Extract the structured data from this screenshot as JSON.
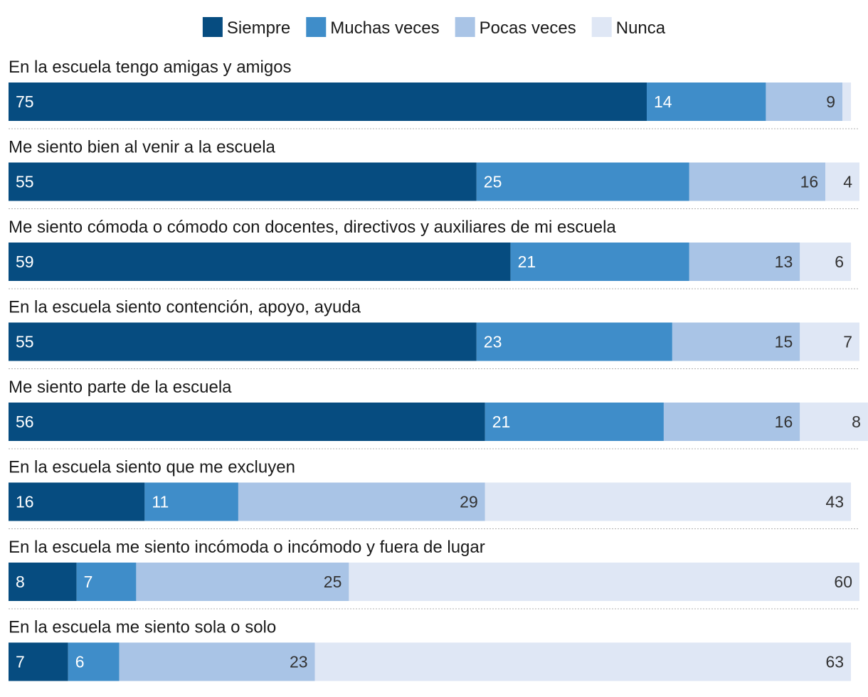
{
  "chart_data": {
    "type": "bar",
    "orientation": "horizontal",
    "stacked": true,
    "normalized": true,
    "legend": [
      "Siempre",
      "Muchas veces",
      "Pocas veces",
      "Nunca"
    ],
    "legend_position": "top-center",
    "categories": [
      "En la escuela tengo amigas y amigos",
      "Me siento bien al venir a la escuela",
      "Me siento cómoda o cómodo con docentes, directivos y auxiliares de mi escuela",
      "En la escuela siento contención, apoyo, ayuda",
      "Me siento parte de la escuela",
      "En la escuela siento que me excluyen",
      "En la escuela me siento incómoda o incómodo y fuera de lugar",
      "En la escuela me siento sola o solo"
    ],
    "series": [
      {
        "name": "Siempre",
        "values": [
          75,
          55,
          59,
          55,
          56,
          16,
          8,
          7
        ]
      },
      {
        "name": "Muchas veces",
        "values": [
          14,
          25,
          21,
          23,
          21,
          11,
          7,
          6
        ]
      },
      {
        "name": "Pocas veces",
        "values": [
          9,
          16,
          13,
          15,
          16,
          29,
          25,
          23
        ]
      },
      {
        "name": "Nunca",
        "values": [
          1,
          4,
          6,
          7,
          8,
          43,
          60,
          63
        ]
      }
    ],
    "value_labels": [
      [
        "75",
        "14",
        "9",
        ""
      ],
      [
        "55",
        "25",
        "16",
        "4"
      ],
      [
        "59",
        "21",
        "13",
        "6"
      ],
      [
        "55",
        "23",
        "15",
        "7"
      ],
      [
        "56",
        "21",
        "16",
        "8"
      ],
      [
        "16",
        "11",
        "29",
        "43"
      ],
      [
        "8",
        "7",
        "25",
        "60"
      ],
      [
        "7",
        "6",
        "23",
        "63"
      ]
    ],
    "colors": [
      "#064c80",
      "#3f8dc9",
      "#a9c4e6",
      "#dfe7f5"
    ],
    "label_colors": [
      "#ffffff",
      "#ffffff",
      "#333333",
      "#333333"
    ],
    "separator_color": "#b0b0b0",
    "grid": false
  }
}
